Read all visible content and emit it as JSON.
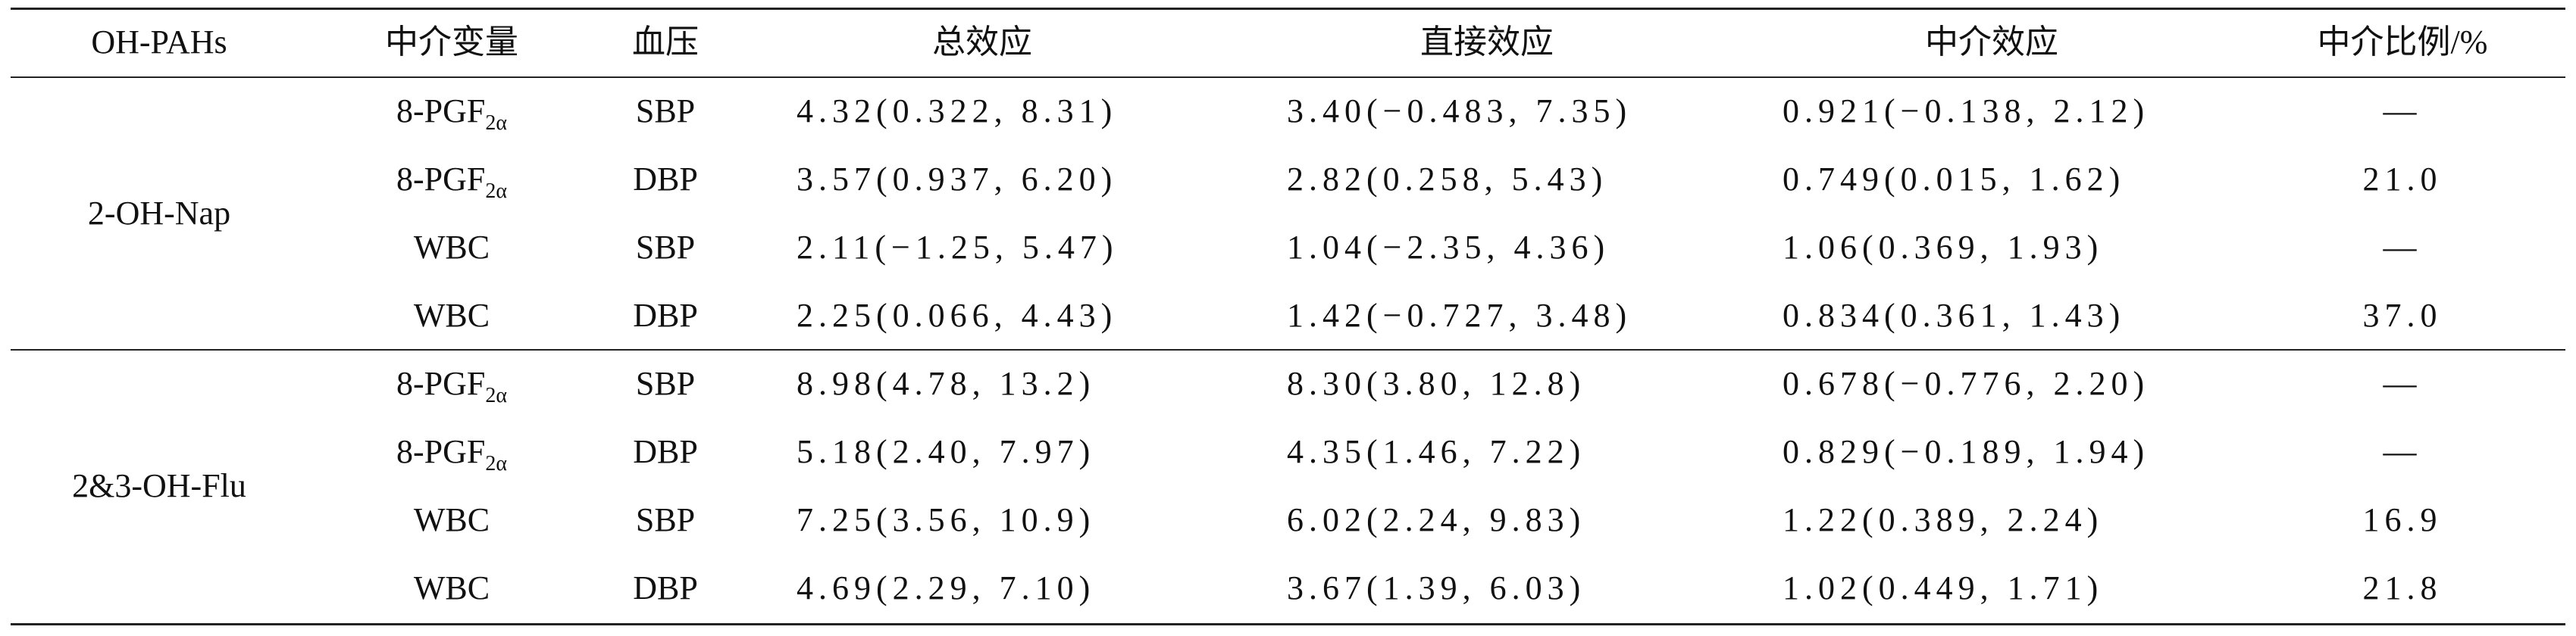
{
  "table": {
    "header": [
      "OH-PAHs",
      "中介变量",
      "血压",
      "总效应",
      "直接效应",
      "中介效应",
      "中介比例/%"
    ],
    "groups": [
      {
        "name": "2-OH-Nap",
        "rows": [
          [
            {
              "base": "8-PGF",
              "sub": "2α"
            },
            "SBP",
            "4.32(0.322, 8.31)",
            "3.40(−0.483, 7.35)",
            "0.921(−0.138, 2.12)",
            "—"
          ],
          [
            {
              "base": "8-PGF",
              "sub": "2α"
            },
            "DBP",
            "3.57(0.937, 6.20)",
            "2.82(0.258, 5.43)",
            "0.749(0.015, 1.62)",
            "21.0"
          ],
          [
            "WBC",
            "SBP",
            "2.11(−1.25, 5.47)",
            "1.04(−2.35, 4.36)",
            "1.06(0.369, 1.93)",
            "—"
          ],
          [
            "WBC",
            "DBP",
            "2.25(0.066, 4.43)",
            "1.42(−0.727, 3.48)",
            "0.834(0.361, 1.43)",
            "37.0"
          ]
        ]
      },
      {
        "name": "2&3-OH-Flu",
        "rows": [
          [
            {
              "base": "8-PGF",
              "sub": "2α"
            },
            "SBP",
            "8.98(4.78, 13.2)",
            "8.30(3.80, 12.8)",
            "0.678(−0.776, 2.20)",
            "—"
          ],
          [
            {
              "base": "8-PGF",
              "sub": "2α"
            },
            "DBP",
            "5.18(2.40, 7.97)",
            "4.35(1.46, 7.22)",
            "0.829(−0.189, 1.94)",
            "—"
          ],
          [
            "WBC",
            "SBP",
            "7.25(3.56, 10.9)",
            "6.02(2.24, 9.83)",
            "1.22(0.389, 2.24)",
            "16.9"
          ],
          [
            "WBC",
            "DBP",
            "4.69(2.29, 7.10)",
            "3.67(1.39, 6.03)",
            "1.02(0.449, 1.71)",
            "21.8"
          ]
        ]
      }
    ]
  }
}
